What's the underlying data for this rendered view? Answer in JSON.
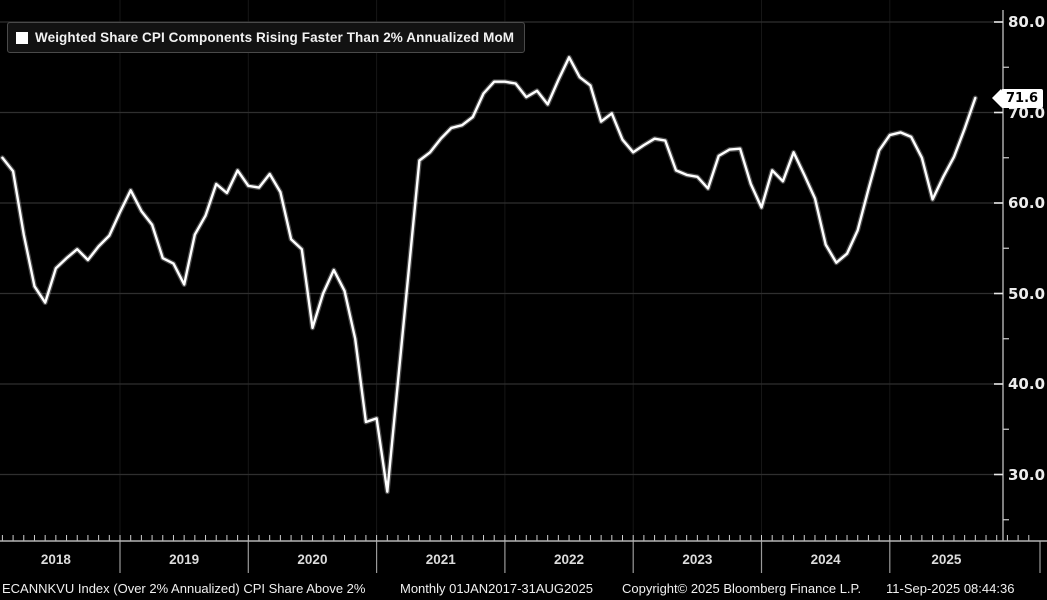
{
  "legend": {
    "label": "Weighted Share CPI Components Rising Faster Than 2% Annualized MoM"
  },
  "last_value_label": "71.6",
  "status_bar": {
    "name": "ECANNKVU Index (Over 2% Annualized) CPI Share Above 2%",
    "period": "Monthly 01JAN2017-31AUG2025",
    "copyright": "Copyright© 2025 Bloomberg Finance L.P.",
    "timestamp": "11-Sep-2025 08:44:36"
  },
  "colors": {
    "background": "#000000",
    "line": "#ffffff",
    "grid": "#2f2f2f",
    "year_grid": "#161616",
    "axis": "#b4b4b4",
    "tick": "#cfcfcf",
    "tick_label": "#ececec",
    "legend_bg": "#121212",
    "legend_border": "#4a4a4a",
    "tag_bg": "#ffffff",
    "tag_text": "#000000"
  },
  "y_axis": {
    "tick_labels": [
      "80.0",
      "70.0",
      "60.0",
      "50.0",
      "40.0",
      "30.0"
    ],
    "tick_values": [
      80,
      70,
      60,
      50,
      40,
      30
    ],
    "minor_tick_values": [
      75,
      65,
      55,
      45,
      35,
      25
    ]
  },
  "x_axis": {
    "year_labels": [
      "2018",
      "2019",
      "2020",
      "2021",
      "2022",
      "2023",
      "2024",
      "2025"
    ]
  },
  "chart_data": {
    "type": "line",
    "title": "Weighted Share CPI Components Rising Faster Than 2% Annualized MoM",
    "xlabel": "",
    "ylabel": "",
    "legend_position": "top-left",
    "grid": "on",
    "x_range_shown": "JAN2018-AUG2025",
    "full_data_range": "01JAN2017-31AUG2025",
    "frequency": "Monthly",
    "ylim_visible": [
      22.6,
      82.4
    ],
    "y_ticks": [
      30,
      40,
      50,
      60,
      70,
      80
    ],
    "last_point": {
      "date": "31AUG2025",
      "value": 71.6
    },
    "series": [
      {
        "name": "Weighted Share CPI Components Rising Faster Than 2% Annualized MoM",
        "year_order": [
          "2018",
          "2019",
          "2020",
          "2021",
          "2022",
          "2023",
          "2024",
          "2025"
        ],
        "monthly_values_by_year": {
          "2018": [
            65.0,
            63.5,
            56.5,
            50.8,
            49.0,
            52.8,
            53.9,
            54.9,
            53.7,
            55.2,
            56.4,
            59.0
          ],
          "2019": [
            61.4,
            59.1,
            57.6,
            53.9,
            53.3,
            51.0,
            56.5,
            58.6,
            62.1,
            61.1,
            63.6,
            61.9
          ],
          "2020": [
            61.7,
            63.2,
            61.2,
            56.0,
            54.9,
            46.2,
            50.0,
            52.6,
            50.3,
            45.0,
            35.8,
            36.2
          ],
          "2021": [
            28.1,
            40.3,
            52.5,
            64.7,
            65.6,
            67.1,
            68.3,
            68.6,
            69.5,
            72.1,
            73.4,
            73.4
          ],
          "2022": [
            73.2,
            71.7,
            72.4,
            70.9,
            73.6,
            76.1,
            73.9,
            73.0,
            69.0,
            69.9,
            67.0,
            65.6
          ],
          "2023": [
            66.4,
            67.1,
            66.9,
            63.6,
            63.1,
            62.9,
            61.6,
            65.2,
            65.9,
            66.0,
            62.1,
            59.5
          ],
          "2024": [
            63.6,
            62.4,
            65.6,
            63.1,
            60.5,
            55.4,
            53.4,
            54.4,
            57.0,
            61.5,
            65.8,
            67.5
          ],
          "2025": [
            67.8,
            67.3,
            65.0,
            60.4,
            62.9,
            65.1,
            68.2,
            71.6
          ]
        }
      }
    ]
  }
}
